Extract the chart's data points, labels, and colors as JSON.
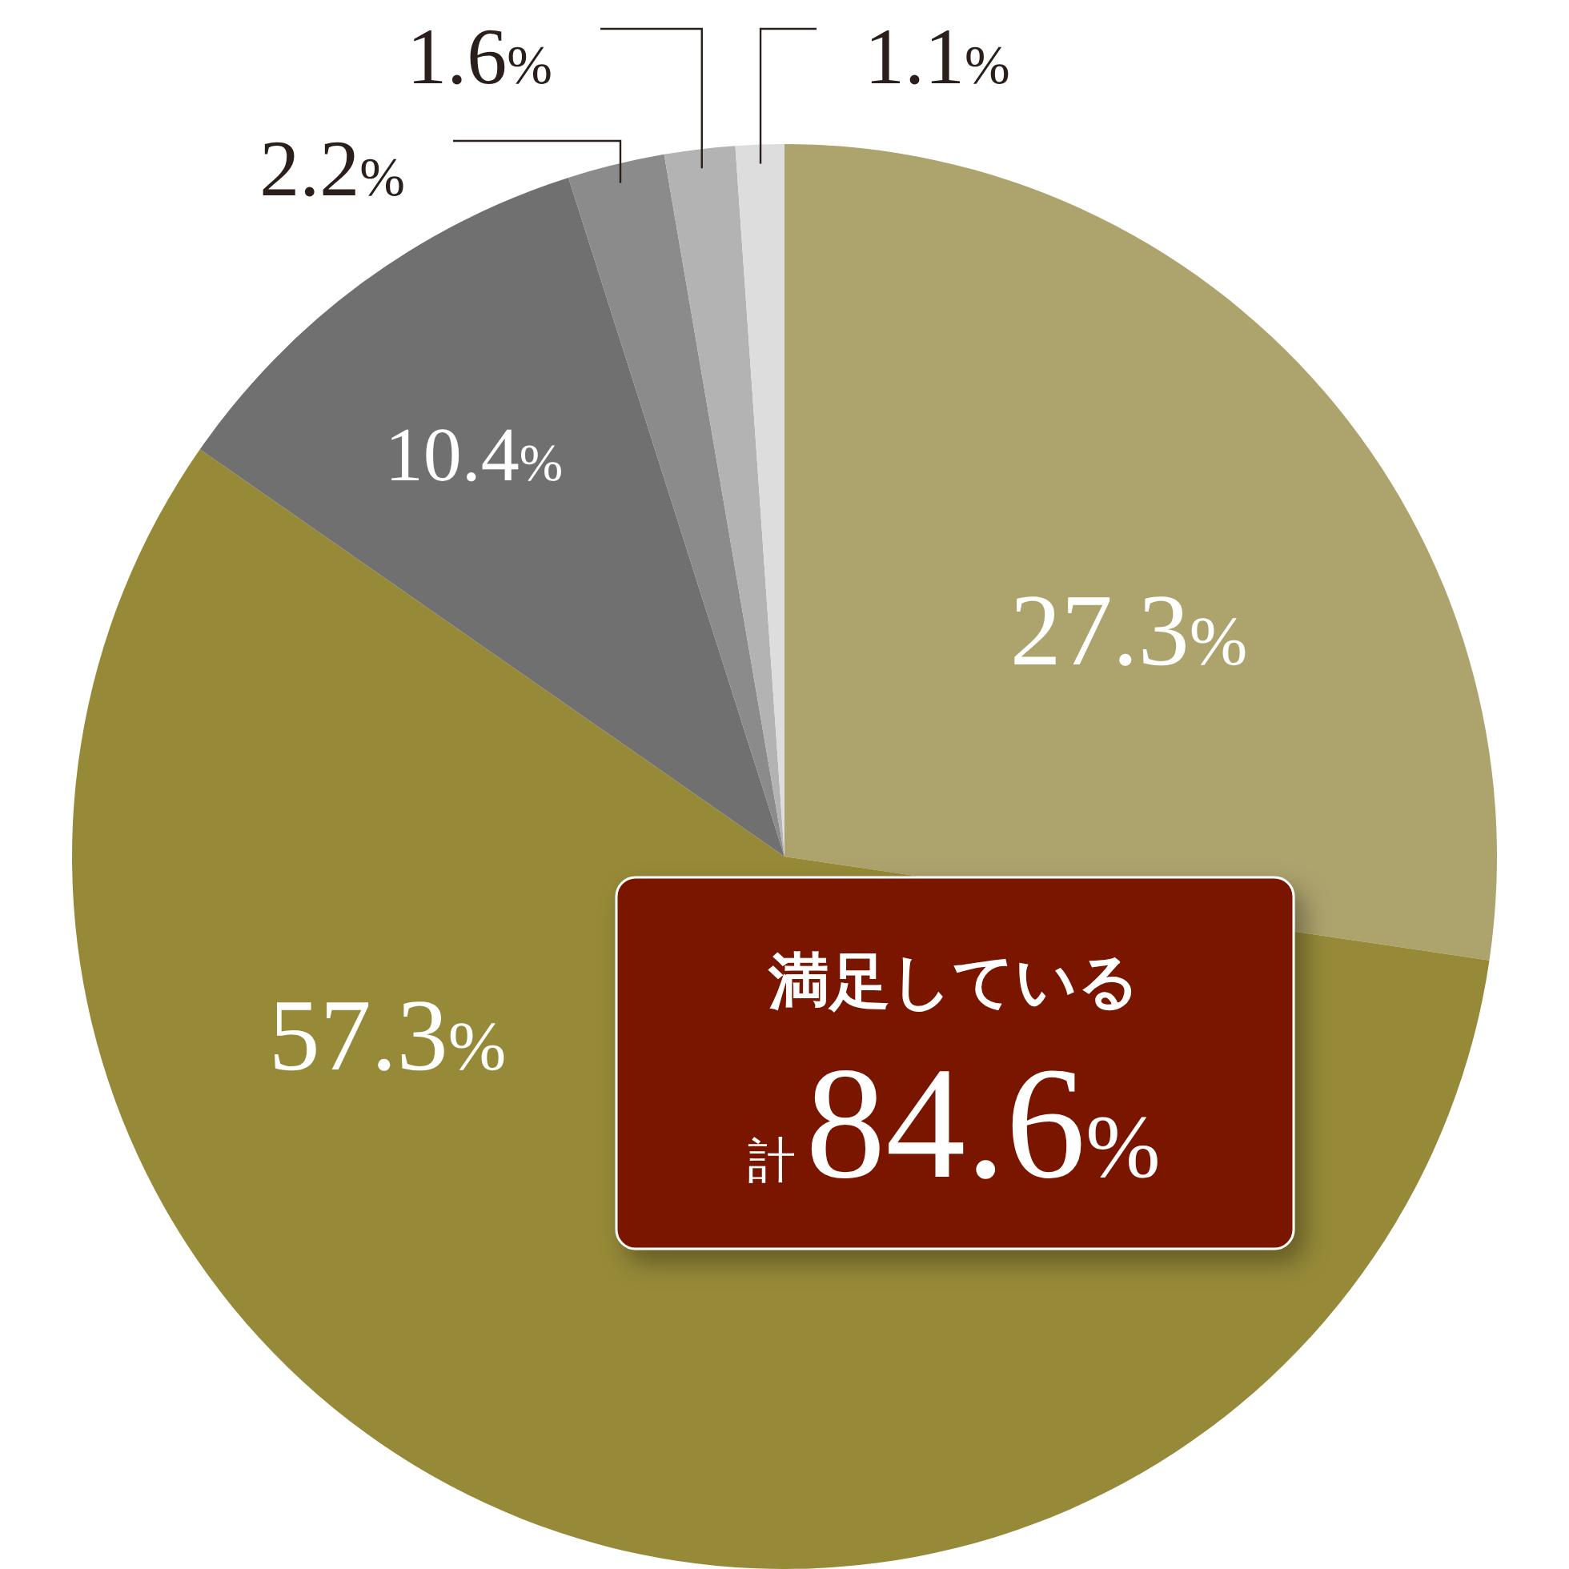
{
  "chart_data": {
    "type": "pie",
    "categories": [
      null,
      null,
      null,
      null,
      null,
      null
    ],
    "values": [
      27.3,
      57.3,
      10.4,
      2.2,
      1.6,
      1.1
    ],
    "colors": [
      "#ada36d",
      "#968a38",
      "#707070",
      "#8b8b8b",
      "#b3b3b3",
      "#dddddd"
    ],
    "value_labels": [
      "27.3%",
      "57.3%",
      "10.4%",
      "2.2%",
      "1.6%",
      "1.1%"
    ],
    "annotations": [
      "満足している",
      "計84.6%"
    ]
  }
}
